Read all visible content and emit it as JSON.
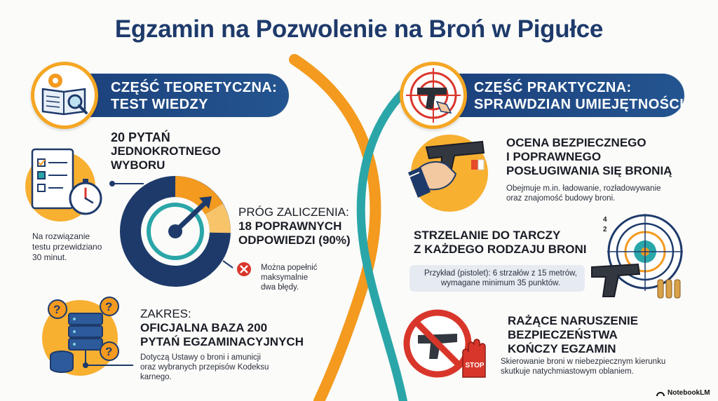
{
  "title": "Egzamin na Pozwolenie na Broń w Pigułce",
  "left": {
    "banner": {
      "line1": "CZĘŚĆ TEORETYCZNA:",
      "line2": "TEST WIEDZY"
    },
    "questions": {
      "line1": "20 PYTAŃ",
      "line2": "JEDNOKROTNEGO",
      "line3": "WYBORU"
    },
    "time_note": {
      "line1": "Na rozwiązanie",
      "line2": "testu przewidziano",
      "line3": "30 minut."
    },
    "threshold": {
      "label": "PRÓG ZALICZENIA:",
      "line1": "18 POPRAWNYCH",
      "line2": "ODPOWIEDZI (90%)"
    },
    "mistakes": {
      "line1": "Można popełnić",
      "line2": "maksymalnie",
      "line3": "dwa błędy."
    },
    "scope": {
      "label": "ZAKRES:",
      "line1": "OFICJALNA BAZA 200",
      "line2": "PYTAŃ EGZAMINACYJNYCH"
    },
    "scope_note": {
      "line1": "Dotyczą Ustawy o broni i amunicji",
      "line2": "oraz wybranych przepisów Kodeksu",
      "line3": "karnego."
    }
  },
  "right": {
    "banner": {
      "line1": "CZĘŚĆ PRAKTYCZNA:",
      "line2": "SPRAWDZIAN UMIEJĘTNOŚCI"
    },
    "handling": {
      "line1": "OCENA BEZPIECZNEGO",
      "line2": "I POPRAWNEGO",
      "line3": "POSŁUGIWANIA SIĘ BRONIĄ"
    },
    "handling_note": {
      "line1": "Obejmuje m.in. ładowanie, rozładowywanie",
      "line2": "oraz znajomość budowy broni."
    },
    "shooting": {
      "line1": "STRZELANIE DO TARCZY",
      "line2": "Z KAŻDEGO RODZAJU BRONI"
    },
    "shooting_note": {
      "line1": "Przykład (pistolet): 6 strzałów z 15 metrów,",
      "line2": "wymagane minimum 35 punktów."
    },
    "target_numbers": {
      "a": "4",
      "b": "2"
    },
    "violation": {
      "line1": "RAŻĄCE NARUSZENIE",
      "line2": "BEZPIECZEŃSTWA",
      "line3": "KOŃCZY EGZAMIN"
    },
    "violation_note": {
      "line1": "Skierowanie broni w niebezpiecznym kierunku",
      "line2": "skutkuje natychmiastowym oblaniem."
    },
    "stop_label": "STOP"
  },
  "footer": {
    "brand": "NotebookLM"
  },
  "colors": {
    "navy": "#1e3a6b",
    "orange": "#f39a1f",
    "teal": "#2aa6a8",
    "red": "#d9362b"
  },
  "icons": [
    "book-gear-icon",
    "target-pistol-icon",
    "checklist-stopwatch-icon",
    "gauge-icon",
    "error-x-icon",
    "database-question-icon",
    "hand-pistol-icon",
    "shooting-target-icon",
    "no-gun-icon",
    "stop-hand-icon",
    "notebooklm-logo-icon"
  ]
}
